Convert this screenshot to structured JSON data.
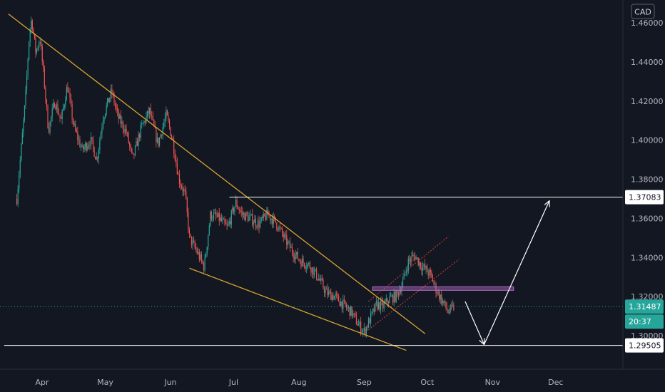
{
  "chart_data": {
    "type": "candlestick",
    "currency_label": "CAD",
    "price_axis": {
      "ylim": [
        1.2855,
        1.4705
      ],
      "ticks": [
        "1.46000",
        "1.44000",
        "1.42000",
        "1.40000",
        "1.38000",
        "1.36000",
        "1.34000",
        "1.32000",
        "1.30000"
      ]
    },
    "time_axis": {
      "months": [
        "Apr",
        "May",
        "Jun",
        "Jul",
        "Aug",
        "Sep",
        "Oct",
        "Nov",
        "Dec"
      ]
    },
    "price_tags": [
      {
        "value": "1.37083",
        "level": 1.37083,
        "style": "level"
      },
      {
        "value": "1.31487",
        "level": 1.31487,
        "style": "current"
      },
      {
        "value": "20:37",
        "level": 1.31487,
        "style": "countdown"
      },
      {
        "value": "1.29505",
        "level": 1.29505,
        "style": "level"
      }
    ],
    "series_path": [
      [
        "Mar 20",
        1.37
      ],
      [
        "Mar 22",
        1.395
      ],
      [
        "Mar 24",
        1.42
      ],
      [
        "Mar 26",
        1.455
      ],
      [
        "Mar 27",
        1.462
      ],
      [
        "Mar 29",
        1.445
      ],
      [
        "Mar 31",
        1.452
      ],
      [
        "Apr 2",
        1.43
      ],
      [
        "Apr 4",
        1.405
      ],
      [
        "Apr 7",
        1.42
      ],
      [
        "Apr 10",
        1.41
      ],
      [
        "Apr 13",
        1.428
      ],
      [
        "Apr 16",
        1.407
      ],
      [
        "Apr 20",
        1.395
      ],
      [
        "Apr 24",
        1.4
      ],
      [
        "Apr 27",
        1.39
      ],
      [
        "Apr 30",
        1.412
      ],
      [
        "May 4",
        1.425
      ],
      [
        "May 7",
        1.412
      ],
      [
        "May 11",
        1.404
      ],
      [
        "May 14",
        1.39
      ],
      [
        "May 18",
        1.406
      ],
      [
        "May 22",
        1.415
      ],
      [
        "May 26",
        1.398
      ],
      [
        "May 30",
        1.413
      ],
      [
        "Jun 2",
        1.4
      ],
      [
        "Jun 5",
        1.38
      ],
      [
        "Jun 8",
        1.372
      ],
      [
        "Jun 10",
        1.35
      ],
      [
        "Jun 14",
        1.342
      ],
      [
        "Jun 17",
        1.335
      ],
      [
        "Jun 20",
        1.362
      ],
      [
        "Jun 24",
        1.36
      ],
      [
        "Jun 28",
        1.355
      ],
      [
        "Jul 2",
        1.368
      ],
      [
        "Jul 5",
        1.362
      ],
      [
        "Jul 9",
        1.36
      ],
      [
        "Jul 13",
        1.357
      ],
      [
        "Jul 17",
        1.362
      ],
      [
        "Jul 21",
        1.358
      ],
      [
        "Jul 25",
        1.35
      ],
      [
        "Jul 29",
        1.343
      ],
      [
        "Aug 2",
        1.338
      ],
      [
        "Aug 6",
        1.336
      ],
      [
        "Aug 10",
        1.33
      ],
      [
        "Aug 14",
        1.322
      ],
      [
        "Aug 18",
        1.32
      ],
      [
        "Aug 22",
        1.316
      ],
      [
        "Aug 26",
        1.312
      ],
      [
        "Aug 29",
        1.306
      ],
      [
        "Sep 1",
        1.302
      ],
      [
        "Sep 4",
        1.309
      ],
      [
        "Sep 7",
        1.316
      ],
      [
        "Sep 10",
        1.315
      ],
      [
        "Sep 13",
        1.319
      ],
      [
        "Sep 16",
        1.32
      ],
      [
        "Sep 19",
        1.326
      ],
      [
        "Sep 22",
        1.338
      ],
      [
        "Sep 25",
        1.341
      ],
      [
        "Sep 28",
        1.336
      ],
      [
        "Oct 1",
        1.333
      ],
      [
        "Oct 3",
        1.33
      ],
      [
        "Oct 5",
        1.324
      ],
      [
        "Oct 8",
        1.318
      ],
      [
        "Oct 11",
        1.312
      ],
      [
        "Oct 14",
        1.315
      ]
    ],
    "drawings": [
      {
        "kind": "upper-trendline",
        "from": [
          "Mar 16",
          1.4645
        ],
        "to": [
          "Sep 30",
          1.301
        ],
        "color": "#d9a62e"
      },
      {
        "kind": "lower-trendline",
        "from": [
          "Jun 10",
          1.3345
        ],
        "to": [
          "Sep 21",
          1.2925
        ],
        "color": "#d9a62e"
      },
      {
        "kind": "channel-upper",
        "from": [
          "Sep 3",
          1.3175
        ],
        "to": [
          "Oct 11",
          1.3507
        ],
        "color": "#e03a3a"
      },
      {
        "kind": "channel-lower",
        "from": [
          "Sep 3",
          1.303
        ],
        "to": [
          "Oct 16",
          1.339
        ],
        "color": "#e03a3a"
      },
      {
        "kind": "horizontal-line",
        "from": [
          "Jun 29",
          1.37083
        ],
        "to": "axis",
        "color": "#ffffff"
      },
      {
        "kind": "horizontal-line",
        "from": [
          "Mar 14",
          1.29505
        ],
        "to": "axis",
        "color": "#ffffff"
      },
      {
        "kind": "zone",
        "from": [
          "Sep 5",
          1.325
        ],
        "to": [
          "Nov 11",
          1.3232
        ],
        "color": "#b36bc6"
      },
      {
        "kind": "arrow-path",
        "points": [
          [
            "Oct 19",
            1.3175
          ],
          [
            "Oct 28",
            1.2955
          ],
          [
            "Nov 28",
            1.369
          ]
        ],
        "color": "#ffffff"
      }
    ],
    "grid": false,
    "legend": "none"
  }
}
